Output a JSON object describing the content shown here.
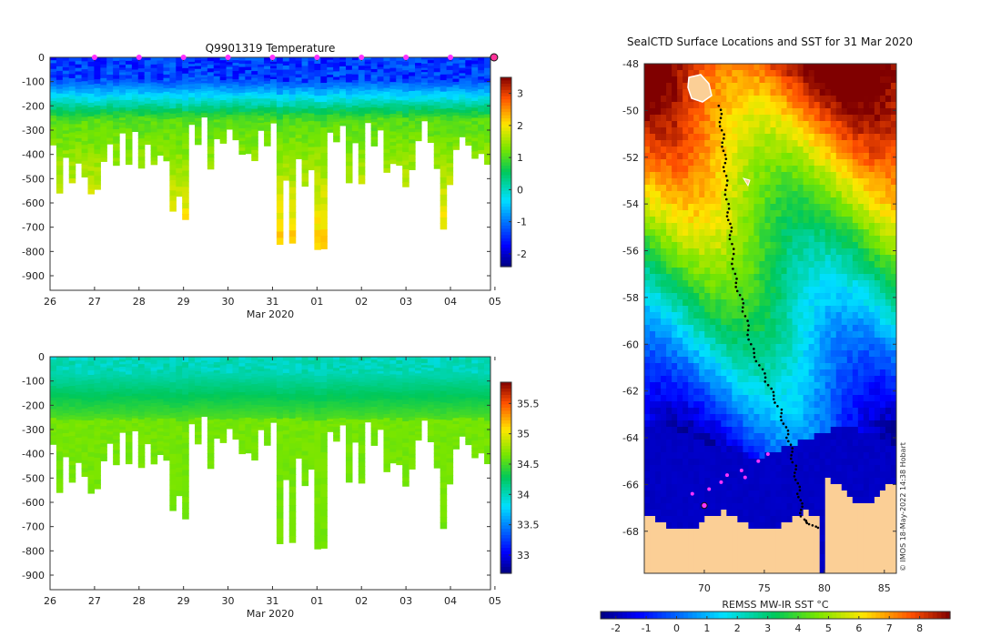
{
  "chart_data": [
    {
      "type": "heatmap",
      "title": "Q9901319  Temperature",
      "xlabel": "Mar 2020",
      "ylabel": "",
      "x_ticks": [
        "26",
        "27",
        "28",
        "29",
        "30",
        "31",
        "01",
        "02",
        "03",
        "04",
        "05"
      ],
      "y_ticks": [
        "0",
        "-100",
        "-200",
        "-300",
        "-400",
        "-500",
        "-600",
        "-700",
        "-800",
        "-900"
      ],
      "ylim": [
        -960,
        0
      ],
      "xlim": [
        0,
        9.9
      ],
      "colorbar": {
        "min": -2.4,
        "max": 3.5,
        "ticks": [
          "-2",
          "-1",
          "0",
          "1",
          "2",
          "3"
        ]
      },
      "profile_days": [
        0.2,
        0.6,
        0.9,
        1.3,
        1.7,
        2.1,
        2.5,
        2.8,
        3.2,
        3.6,
        4.0,
        4.4,
        4.8,
        5.2,
        5.6,
        6.0,
        6.4,
        6.8,
        7.2,
        7.6,
        8.0,
        8.4,
        8.8,
        9.2,
        9.6
      ],
      "profile_max_depth": [
        500,
        470,
        570,
        390,
        380,
        400,
        410,
        630,
        300,
        400,
        300,
        390,
        310,
        710,
        490,
        810,
        300,
        460,
        310,
        440,
        510,
        290,
        650,
        330,
        400
      ],
      "surface_marker_days": [
        1,
        2,
        3,
        4,
        5,
        6,
        7,
        8,
        9,
        9.98
      ]
    },
    {
      "type": "heatmap",
      "title": "",
      "xlabel": "Mar 2020",
      "ylabel": "",
      "x_ticks": [
        "26",
        "27",
        "28",
        "29",
        "30",
        "31",
        "01",
        "02",
        "03",
        "04",
        "05"
      ],
      "y_ticks": [
        "0",
        "-100",
        "-200",
        "-300",
        "-400",
        "-500",
        "-600",
        "-700",
        "-800",
        "-900"
      ],
      "ylim": [
        -960,
        0
      ],
      "xlim": [
        0,
        9.9
      ],
      "colorbar": {
        "min": 32.7,
        "max": 35.85,
        "ticks": [
          "33",
          "33.5",
          "34",
          "34.5",
          "35",
          "35.5"
        ]
      }
    },
    {
      "type": "heatmap",
      "title": "SealCTD Surface Locations and SST for 31 Mar 2020",
      "xlabel": "REMSS MW-IR SST °C",
      "ylabel": "",
      "x_ticks": [
        "70",
        "75",
        "80",
        "85"
      ],
      "y_ticks": [
        "-48",
        "-50",
        "-52",
        "-54",
        "-56",
        "-58",
        "-60",
        "-62",
        "-64",
        "-66",
        "-68"
      ],
      "lon_range": [
        65.0,
        86.0
      ],
      "lat_range": [
        -69.8,
        -48.0
      ],
      "colorbar": {
        "min": -2.5,
        "max": 9,
        "ticks": [
          "-2",
          "-1",
          "0",
          "1",
          "2",
          "3",
          "4",
          "5",
          "6",
          "7",
          "8"
        ]
      },
      "surface_locations": [
        [
          69.0,
          -66.4
        ],
        [
          70.0,
          -66.9
        ],
        [
          70.4,
          -66.2
        ],
        [
          71.4,
          -65.9
        ],
        [
          71.9,
          -65.6
        ],
        [
          73.1,
          -65.4
        ],
        [
          73.4,
          -65.7
        ],
        [
          74.5,
          -65.0
        ],
        [
          75.3,
          -64.7
        ]
      ]
    }
  ],
  "credit": "© IMOS 18-May-2022 14:38 Hobart"
}
